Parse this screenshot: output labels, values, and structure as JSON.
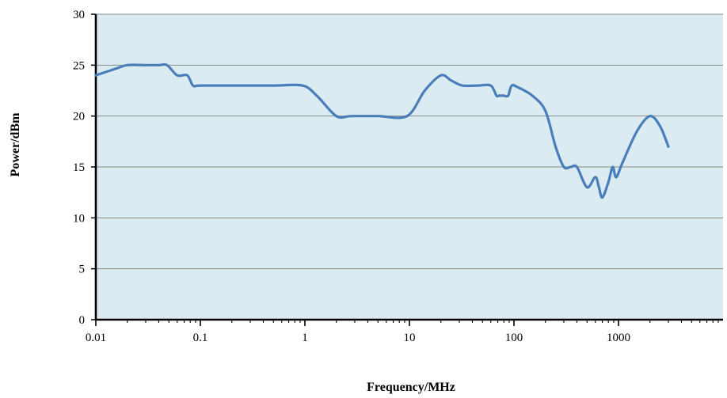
{
  "chart_data": {
    "type": "line",
    "title": "",
    "xlabel": "Frequency/MHz",
    "ylabel": "Power/dBm",
    "x_scale": "log",
    "xlim": [
      0.01,
      10000
    ],
    "ylim": [
      0,
      30
    ],
    "grid": "horizontal",
    "plot_background": "#dbebf2",
    "line_color": "#4a7ebb",
    "x_tick_labels": [
      "0.01",
      "0.1",
      "1",
      "10",
      "100",
      "1000"
    ],
    "y_tick_labels": [
      "0",
      "5",
      "10",
      "15",
      "20",
      "25",
      "30"
    ],
    "series": [
      {
        "x": [
          0.01,
          0.015,
          0.02,
          0.03,
          0.04,
          0.048,
          0.06,
          0.075,
          0.085,
          0.1,
          0.2,
          0.5,
          0.95,
          1.3,
          2.0,
          2.8,
          5,
          9.5,
          14,
          20,
          25,
          32,
          45,
          60,
          68,
          72,
          80,
          88,
          95,
          110,
          150,
          200,
          250,
          300,
          350,
          400,
          500,
          600,
          650,
          700,
          800,
          880,
          950,
          1100,
          1500,
          2000,
          2500,
          3000
        ],
        "y": [
          24,
          24.6,
          25,
          25,
          25,
          25,
          24,
          24,
          23,
          23,
          23,
          23,
          23,
          22,
          20,
          20,
          20,
          20,
          22.5,
          24,
          23.5,
          23,
          23,
          23,
          22,
          22,
          22,
          22,
          23,
          22.8,
          22,
          20.5,
          17,
          15,
          15,
          15,
          13,
          14,
          13,
          12,
          13.5,
          15,
          14,
          15.5,
          18.5,
          20,
          19,
          17
        ]
      }
    ]
  }
}
